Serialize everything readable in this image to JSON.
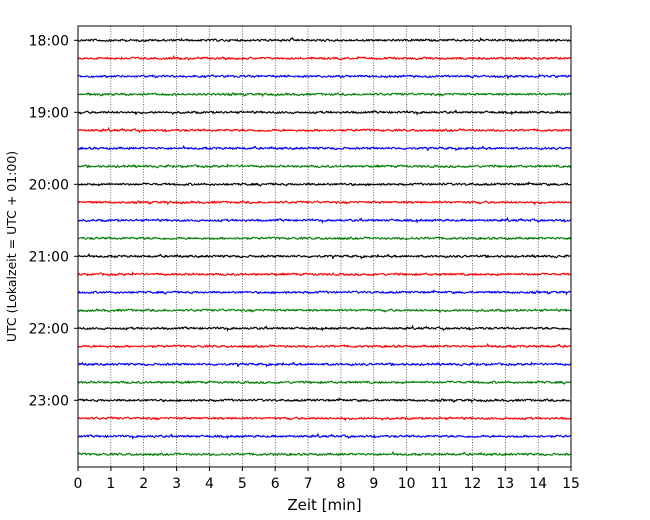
{
  "chart_data": {
    "type": "line",
    "title": "",
    "xlabel": "Zeit  [min]",
    "ylabel": "UTC (Lokalzeit = UTC + 01:00)",
    "xlim": [
      0,
      15
    ],
    "x_ticks": [
      "0",
      "1",
      "2",
      "3",
      "4",
      "5",
      "6",
      "7",
      "8",
      "9",
      "10",
      "11",
      "12",
      "13",
      "14",
      "15"
    ],
    "y_ticks": [
      "18:00",
      "19:00",
      "20:00",
      "21:00",
      "22:00",
      "23:00"
    ],
    "y_ticks_hour_offset": [
      0,
      1,
      2,
      3,
      4,
      5
    ],
    "grid": "vertical dotted lines at each minute",
    "trace_interval_minutes": 15,
    "trace_start": "18:00",
    "trace_count": 24,
    "colors": [
      "#000000",
      "#ff0000",
      "#0000ff",
      "#008000"
    ],
    "series": [
      {
        "start": "18:00",
        "color": "#000000"
      },
      {
        "start": "18:15",
        "color": "#ff0000"
      },
      {
        "start": "18:30",
        "color": "#0000ff"
      },
      {
        "start": "18:45",
        "color": "#008000"
      },
      {
        "start": "19:00",
        "color": "#000000"
      },
      {
        "start": "19:15",
        "color": "#ff0000"
      },
      {
        "start": "19:30",
        "color": "#0000ff"
      },
      {
        "start": "19:45",
        "color": "#008000"
      },
      {
        "start": "20:00",
        "color": "#000000"
      },
      {
        "start": "20:15",
        "color": "#ff0000"
      },
      {
        "start": "20:30",
        "color": "#0000ff"
      },
      {
        "start": "20:45",
        "color": "#008000"
      },
      {
        "start": "21:00",
        "color": "#000000"
      },
      {
        "start": "21:15",
        "color": "#ff0000"
      },
      {
        "start": "21:30",
        "color": "#0000ff"
      },
      {
        "start": "21:45",
        "color": "#008000"
      },
      {
        "start": "22:00",
        "color": "#000000"
      },
      {
        "start": "22:15",
        "color": "#ff0000"
      },
      {
        "start": "22:30",
        "color": "#0000ff"
      },
      {
        "start": "22:45",
        "color": "#008000"
      },
      {
        "start": "23:00",
        "color": "#000000"
      },
      {
        "start": "23:15",
        "color": "#ff0000"
      },
      {
        "start": "23:30",
        "color": "#0000ff"
      },
      {
        "start": "23:45",
        "color": "#008000"
      }
    ]
  }
}
